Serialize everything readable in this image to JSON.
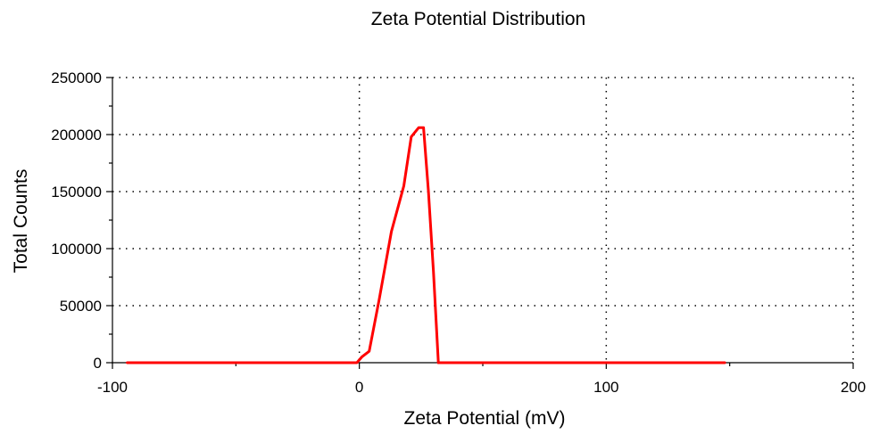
{
  "chart_data": {
    "type": "line",
    "title": "Zeta Potential Distribution",
    "xlabel": "Zeta Potential (mV)",
    "ylabel": "Total Counts",
    "xlim": [
      -100,
      200
    ],
    "ylim": [
      0,
      250000
    ],
    "x_ticks": [
      -100,
      0,
      100,
      200
    ],
    "y_ticks": [
      0,
      50000,
      100000,
      150000,
      200000,
      250000
    ],
    "x_tick_labels": [
      "-100",
      "0",
      "100",
      "200"
    ],
    "y_tick_labels": [
      "0",
      "50000",
      "100000",
      "150000",
      "200000",
      "250000"
    ],
    "grid": true,
    "series": [
      {
        "color": "#ff0000",
        "x": [
          -94,
          -50,
          -10,
          -1,
          1,
          4,
          8,
          13,
          18,
          21,
          24,
          26,
          28,
          30,
          32,
          50,
          100,
          148
        ],
        "y": [
          0,
          0,
          0,
          0,
          5000,
          10000,
          55000,
          115000,
          155000,
          198000,
          206000,
          206000,
          150000,
          80000,
          0,
          0,
          0,
          0
        ]
      }
    ]
  }
}
